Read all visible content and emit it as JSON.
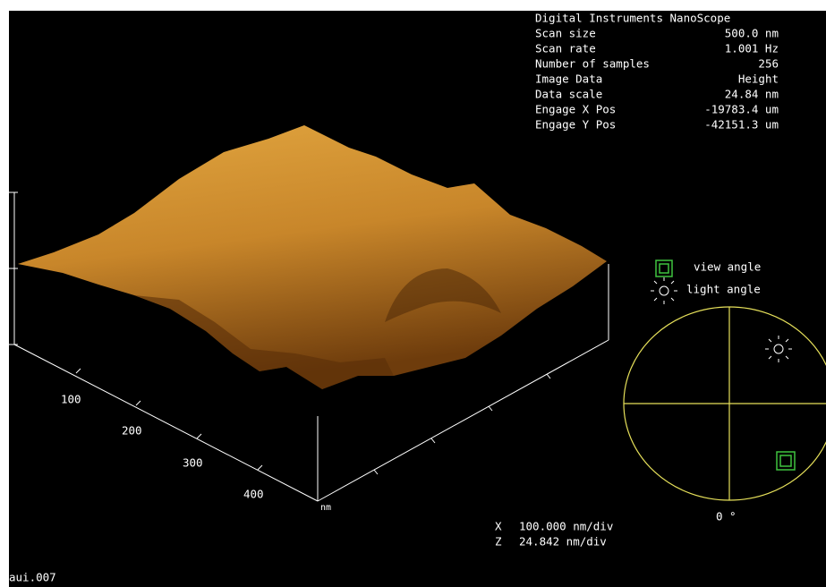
{
  "info": {
    "title": "Digital Instruments NanoScope",
    "rows": [
      [
        "Scan size",
        "500.0 nm"
      ],
      [
        "Scan rate",
        "1.001 Hz"
      ],
      [
        "Number of samples",
        "256"
      ],
      [
        "Image Data",
        "Height"
      ],
      [
        "Data scale",
        "24.84 nm"
      ],
      [
        "Engage X Pos",
        "-19783.4 um"
      ],
      [
        "Engage Y Pos",
        "-42151.3 um"
      ]
    ]
  },
  "axis": {
    "ticks": [
      "100",
      "200",
      "300",
      "400"
    ],
    "unit": "nm"
  },
  "scale": [
    [
      "X",
      "100.000 nm/div"
    ],
    [
      "Z",
      "24.842 nm/div"
    ]
  ],
  "legend": {
    "view": "view angle",
    "light": "light angle"
  },
  "dial": {
    "label": "0 °"
  },
  "file": "aui.007"
}
